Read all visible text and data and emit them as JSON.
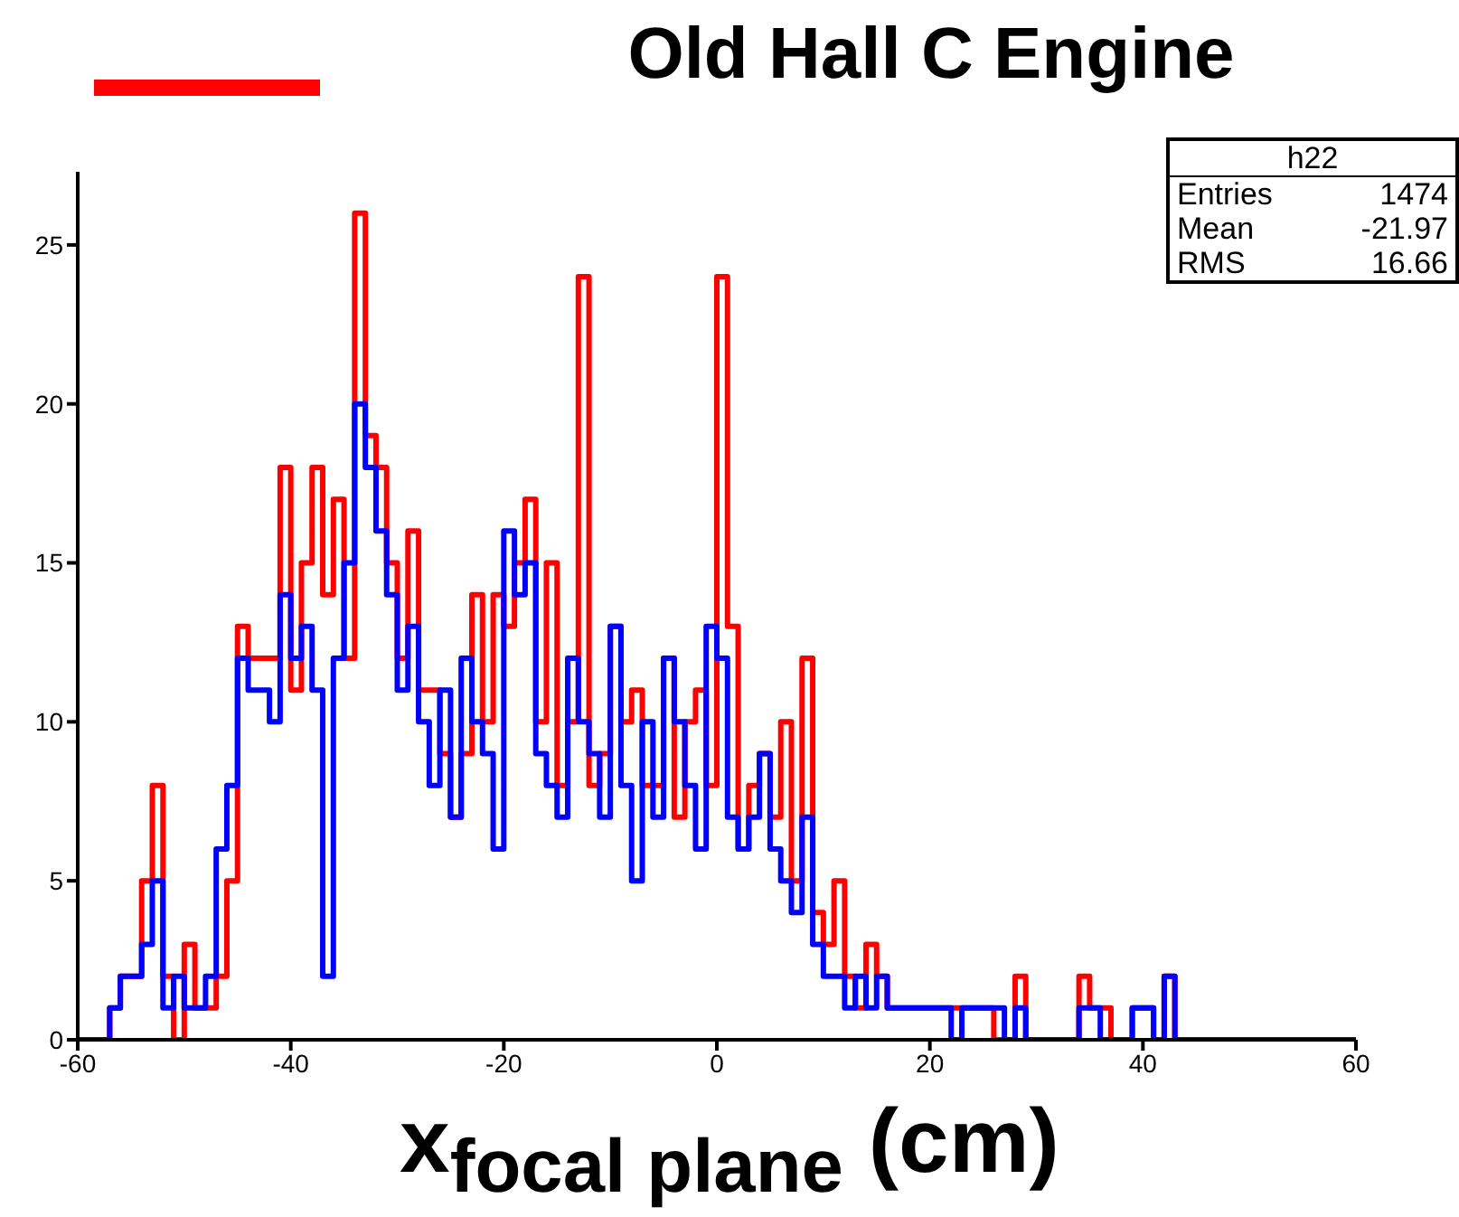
{
  "chart_data": {
    "type": "histogram",
    "title": "Old Hall C Engine",
    "xlabel": "x$_{focal plane}$ (cm)",
    "bins": [
      -60,
      -59,
      -58,
      -57,
      -56,
      -55,
      -54,
      -53,
      -52,
      -51,
      -50,
      -49,
      -48,
      -47,
      -46,
      -45,
      -44,
      -43,
      -42,
      -41,
      -40,
      -39,
      -38,
      -37,
      -36,
      -35,
      -34,
      -33,
      -32,
      -31,
      -30,
      -29,
      -28,
      -27,
      -26,
      -25,
      -24,
      -23,
      -22,
      -21,
      -20,
      -19,
      -18,
      -17,
      -16,
      -15,
      -14,
      -13,
      -12,
      -11,
      -10,
      -9,
      -8,
      -7,
      -6,
      -5,
      -4,
      -3,
      -2,
      -1,
      0,
      1,
      2,
      3,
      4,
      5,
      6,
      7,
      8,
      9,
      10,
      11,
      12,
      13,
      14,
      15,
      16,
      17,
      18,
      19,
      20,
      21,
      22,
      23,
      24,
      25,
      26,
      27,
      28,
      29,
      30,
      31,
      32,
      33,
      34,
      35,
      36,
      37,
      38,
      39,
      40,
      41,
      42,
      43,
      44,
      45,
      46,
      47,
      48,
      49,
      50,
      51,
      52,
      53,
      54,
      55,
      56,
      57,
      58,
      59,
      60
    ],
    "series": [
      {
        "color": "#ff0000",
        "values": [
          0,
          0,
          0,
          1,
          2,
          2,
          5,
          8,
          2,
          0,
          3,
          1,
          1,
          2,
          5,
          13,
          12,
          12,
          12,
          18,
          11,
          15,
          18,
          14,
          17,
          12,
          26,
          19,
          18,
          15,
          12,
          16,
          11,
          11,
          9,
          7,
          9,
          14,
          10,
          14,
          13,
          15,
          17,
          10,
          15,
          8,
          10,
          24,
          8,
          9,
          13,
          10,
          11,
          8,
          8,
          12,
          7,
          10,
          11,
          8,
          24,
          13,
          6,
          8,
          9,
          7,
          10,
          5,
          12,
          4,
          3,
          5,
          2,
          1,
          3,
          2,
          1,
          1,
          1,
          1,
          1,
          1,
          1,
          1,
          1,
          1,
          0,
          0,
          2,
          0,
          0,
          0,
          0,
          0,
          2,
          1,
          1,
          0,
          0,
          1,
          1,
          0,
          2,
          0,
          0,
          0,
          0,
          0,
          0,
          0,
          0,
          0,
          0,
          0,
          0,
          0,
          0,
          0,
          0,
          0
        ]
      },
      {
        "color": "#0000ff",
        "values": [
          0,
          0,
          0,
          1,
          2,
          2,
          3,
          5,
          1,
          2,
          1,
          1,
          2,
          6,
          8,
          12,
          11,
          11,
          10,
          14,
          12,
          13,
          11,
          2,
          12,
          15,
          20,
          18,
          16,
          14,
          11,
          13,
          10,
          8,
          11,
          7,
          12,
          10,
          9,
          6,
          16,
          14,
          15,
          9,
          8,
          7,
          12,
          10,
          9,
          7,
          13,
          8,
          5,
          10,
          7,
          12,
          10,
          8,
          6,
          13,
          12,
          7,
          6,
          7,
          9,
          6,
          5,
          4,
          7,
          3,
          2,
          2,
          1,
          2,
          1,
          2,
          1,
          1,
          1,
          1,
          1,
          1,
          0,
          1,
          1,
          1,
          1,
          0,
          1,
          0,
          0,
          0,
          0,
          0,
          1,
          1,
          0,
          0,
          0,
          1,
          1,
          0,
          2,
          0,
          0,
          0,
          0,
          0,
          0,
          0,
          0,
          0,
          0,
          0,
          0,
          0,
          0,
          0,
          0,
          0
        ]
      }
    ],
    "xlim": [
      -60,
      60
    ],
    "xticks": [
      -60,
      -40,
      -20,
      0,
      20,
      40,
      60
    ],
    "ylim": [
      0,
      27.3
    ],
    "yticks": [
      0,
      5,
      10,
      15,
      20,
      25
    ],
    "annotations": [
      "h22",
      "Entries",
      "1474",
      "Mean",
      "-21.97",
      "RMS",
      "16.66"
    ]
  }
}
